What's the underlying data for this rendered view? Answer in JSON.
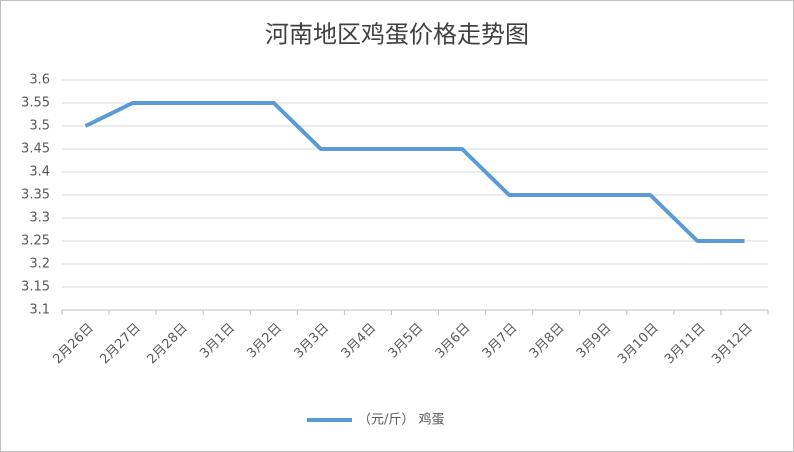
{
  "chart_data": {
    "type": "line",
    "title": "河南地区鸡蛋价格走势图",
    "categories": [
      "2月26日",
      "2月27日",
      "2月28日",
      "3月1日",
      "3月2日",
      "3月3日",
      "3月4日",
      "3月5日",
      "3月6日",
      "3月7日",
      "3月8日",
      "3月9日",
      "3月10日",
      "3月11日",
      "3月12日"
    ],
    "series": [
      {
        "name": "（元/斤） 鸡蛋",
        "color": "#5b9bd5",
        "values": [
          3.5,
          3.55,
          3.55,
          3.55,
          3.55,
          3.45,
          3.45,
          3.45,
          3.45,
          3.35,
          3.35,
          3.35,
          3.35,
          3.25,
          3.25
        ]
      }
    ],
    "ylim": [
      3.1,
      3.6
    ],
    "yticks": [
      3.1,
      3.15,
      3.2,
      3.25,
      3.3,
      3.35,
      3.4,
      3.45,
      3.5,
      3.55,
      3.6
    ],
    "grid": true,
    "legend": "bottom"
  }
}
